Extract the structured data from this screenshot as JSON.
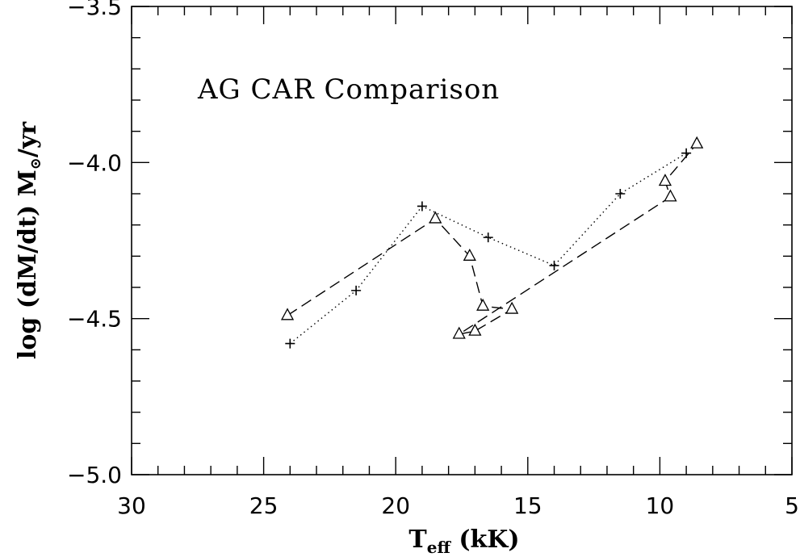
{
  "chart_data": {
    "type": "line",
    "title": "AG CAR Comparison",
    "xlabel": {
      "main": "T",
      "sub": "eff",
      "rest": " (kK)"
    },
    "ylabel": {
      "pre": "log (dM/dt) M",
      "sub": "⊙",
      "post": "/yr"
    },
    "xlim": [
      30,
      5
    ],
    "ylim": [
      -5.0,
      -3.5
    ],
    "x_ticks": [
      30,
      25,
      20,
      15,
      10,
      5
    ],
    "x_tick_labels": [
      "30",
      "25",
      "20",
      "15",
      "10",
      "5"
    ],
    "y_ticks": [
      -5.0,
      -4.5,
      -4.0,
      -3.5
    ],
    "y_tick_labels": [
      "−5.0",
      "−4.5",
      "−4.0",
      "−3.5"
    ],
    "grid": false,
    "series": [
      {
        "marker": "plus",
        "line_style": "dotted",
        "x": [
          24.0,
          21.5,
          19.0,
          16.5,
          14.0,
          11.5,
          9.0
        ],
        "y": [
          -4.58,
          -4.41,
          -4.14,
          -4.24,
          -4.33,
          -4.1,
          -3.97
        ]
      },
      {
        "marker": "triangle",
        "line_style": "dashed",
        "x": [
          24.1,
          18.5,
          17.2,
          16.7,
          15.6,
          17.0,
          17.6,
          9.6,
          9.8,
          8.6
        ],
        "y": [
          -4.49,
          -4.18,
          -4.3,
          -4.46,
          -4.47,
          -4.54,
          -4.55,
          -4.11,
          -4.06,
          -3.94
        ]
      }
    ]
  }
}
